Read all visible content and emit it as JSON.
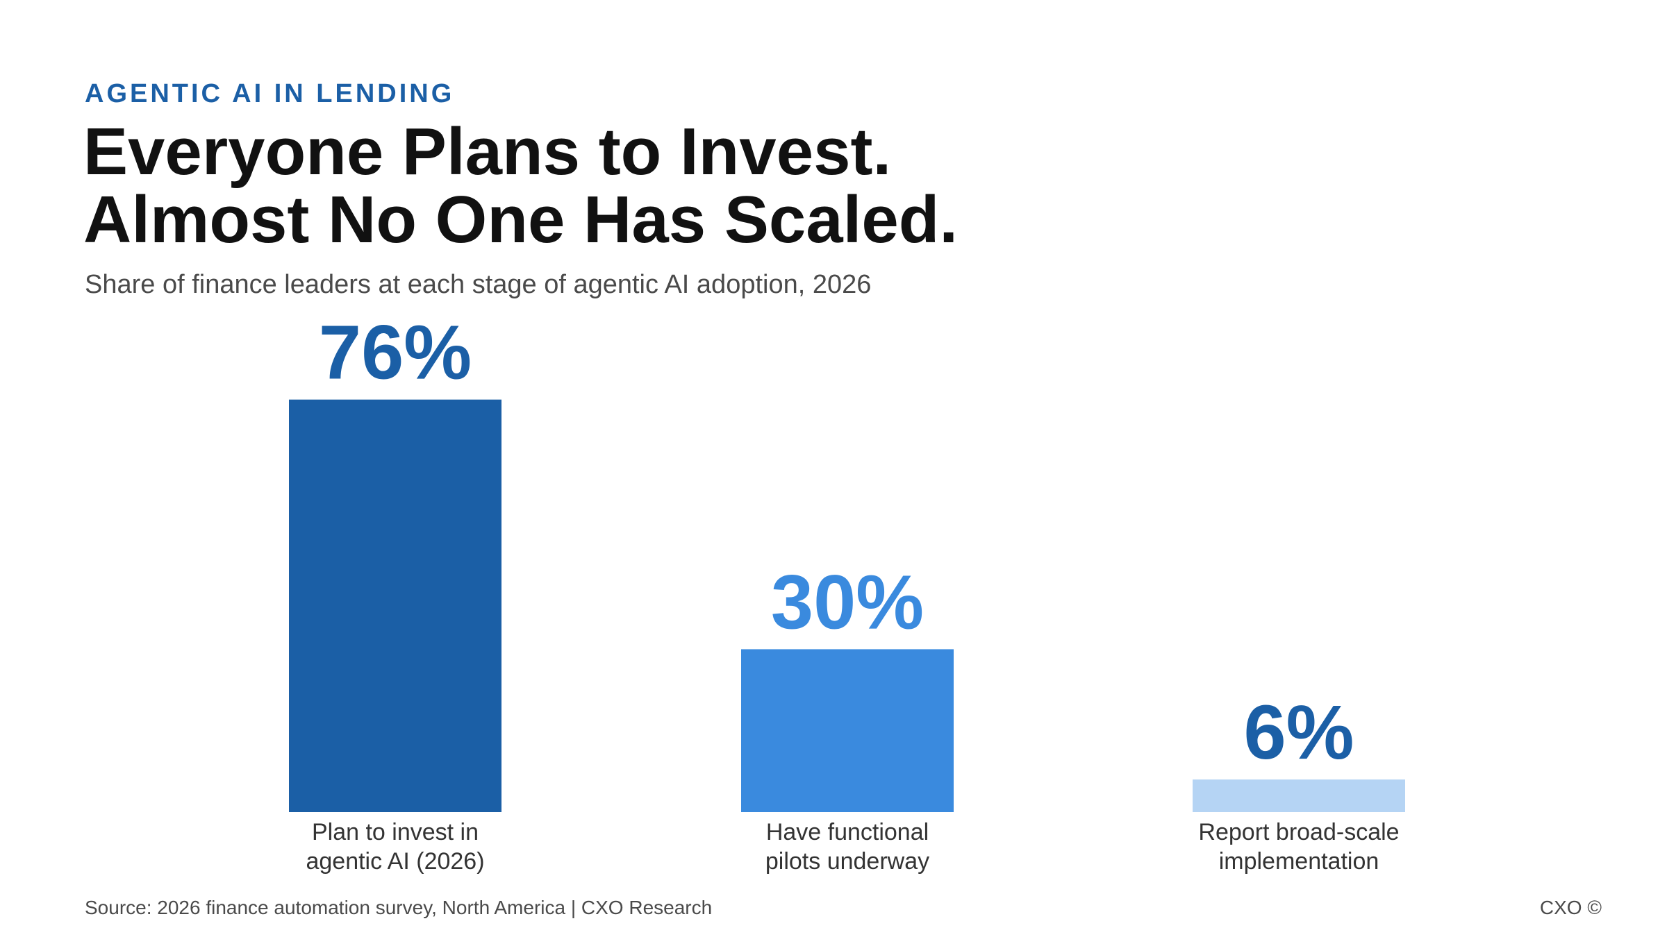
{
  "header": {
    "kicker": "AGENTIC AI IN LENDING",
    "title_line1": "Everyone Plans to Invest.",
    "title_line2": "Almost No One Has Scaled.",
    "subtitle": "Share of finance leaders at each stage of agentic AI adoption, 2026"
  },
  "chart_data": {
    "type": "bar",
    "title": "Everyone Plans to Invest. Almost No One Has Scaled.",
    "subtitle": "Share of finance leaders at each stage of agentic AI adoption, 2026",
    "xlabel": "",
    "ylabel": "",
    "ylim": [
      0,
      100
    ],
    "unit": "%",
    "grid": false,
    "legend": "none",
    "categories": [
      [
        "Plan to invest in",
        "agentic AI (2026)"
      ],
      [
        "Have functional",
        "pilots underway"
      ],
      [
        "Report broad-scale",
        "implementation"
      ]
    ],
    "values": [
      76,
      30,
      6
    ],
    "data_labels": [
      "76%",
      "30%",
      "6%"
    ],
    "bar_colors": [
      "#1b5fa6",
      "#3a8ade",
      "#b5d4f4"
    ],
    "label_colors": [
      "#1b5fa6",
      "#3a8ade",
      "#1b5fa6"
    ]
  },
  "footer": {
    "source": "Source: 2026 finance automation survey, North America | CXO Research",
    "brand": "CXO ©"
  }
}
